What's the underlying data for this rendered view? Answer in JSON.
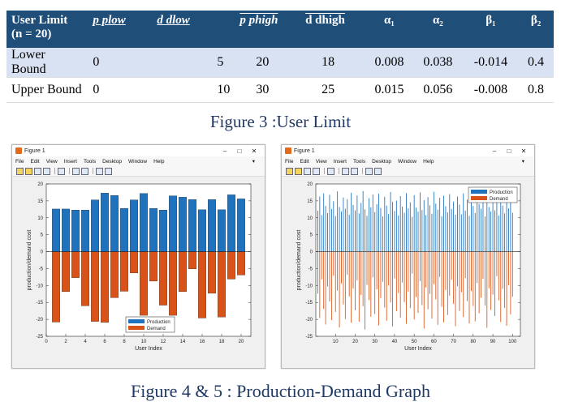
{
  "table": {
    "headers": {
      "user_limit": "User Limit",
      "n": "(n = 20)",
      "p_plow": "p plow",
      "d_dlow": "d dlow",
      "p_phigh": "p phigh",
      "d_dhigh": "d dhigh",
      "alpha1": "α₁",
      "alpha2": "α₂",
      "beta1": "β₁",
      "beta2": "β₂"
    },
    "rows": [
      {
        "label": "Lower Bound",
        "v": [
          "0",
          "5",
          "20",
          "18",
          "0.008",
          "0.038",
          "-0.014",
          "0.4"
        ]
      },
      {
        "label": "Upper Bound",
        "v": [
          "0",
          "10",
          "30",
          "25",
          "0.015",
          "0.056",
          "-0.008",
          "0.8"
        ]
      }
    ]
  },
  "caption_top": "Figure 3 :User Limit",
  "caption_bottom": "Figure 4 & 5 : Production-Demand Graph",
  "window": {
    "title": "Figure 1",
    "menu": [
      "File",
      "Edit",
      "View",
      "Insert",
      "Tools",
      "Desktop",
      "Window",
      "Help"
    ],
    "min": "–",
    "max": "□",
    "close": "✕",
    "arrow": "▾"
  },
  "colors": {
    "production": "#1f72bd",
    "demand": "#d95319",
    "header_bg": "#1f4e79",
    "row_bg": "#d9e2f3",
    "caption": "#1f3864"
  },
  "chart_data": [
    {
      "type": "bar",
      "xlabel": "User Index",
      "ylabel": "production/demand cost",
      "xlim": [
        0,
        21
      ],
      "ylim": [
        -25,
        20
      ],
      "xticks": [
        0,
        2,
        4,
        6,
        8,
        10,
        12,
        14,
        16,
        18,
        20
      ],
      "yticks": [
        20,
        15,
        10,
        5,
        0,
        -5,
        -10,
        -15,
        -20,
        -25
      ],
      "legend_position": "bottom-center",
      "categories": [
        1,
        2,
        3,
        4,
        5,
        6,
        7,
        8,
        9,
        10,
        11,
        12,
        13,
        14,
        15,
        16,
        17,
        18,
        19,
        20
      ],
      "series": [
        {
          "name": "Production",
          "values": [
            12.6,
            12.6,
            12.3,
            12.3,
            15.3,
            17.3,
            16.6,
            12.8,
            15.3,
            17.2,
            12.8,
            12.3,
            16.5,
            16.1,
            15.4,
            12.4,
            15.4,
            12.4,
            16.8,
            15.6
          ]
        },
        {
          "name": "Demand",
          "values": [
            -20.8,
            -11.8,
            -7.7,
            -16,
            -20.6,
            -20.9,
            -13.6,
            -11.7,
            -6.3,
            -18.8,
            -8.7,
            -15.8,
            -18.8,
            -11.8,
            -5.1,
            -19.6,
            -12.3,
            -19.3,
            -8.1,
            -6.9
          ]
        }
      ]
    },
    {
      "type": "bar",
      "xlabel": "User Index",
      "ylabel": "production/demand cost",
      "xlim": [
        0,
        104
      ],
      "ylim": [
        -25,
        20
      ],
      "xticks": [
        10,
        20,
        30,
        40,
        50,
        60,
        70,
        80,
        90,
        100
      ],
      "yticks": [
        20,
        15,
        10,
        5,
        0,
        -5,
        -10,
        -15,
        -20,
        -25
      ],
      "legend_position": "top-right",
      "categories": [
        1,
        2,
        3,
        4,
        5,
        6,
        7,
        8,
        9,
        10,
        11,
        12,
        13,
        14,
        15,
        16,
        17,
        18,
        19,
        20,
        21,
        22,
        23,
        24,
        25,
        26,
        27,
        28,
        29,
        30,
        31,
        32,
        33,
        34,
        35,
        36,
        37,
        38,
        39,
        40,
        41,
        42,
        43,
        44,
        45,
        46,
        47,
        48,
        49,
        50,
        51,
        52,
        53,
        54,
        55,
        56,
        57,
        58,
        59,
        60,
        61,
        62,
        63,
        64,
        65,
        66,
        67,
        68,
        69,
        70,
        71,
        72,
        73,
        74,
        75,
        76,
        77,
        78,
        79,
        80,
        81,
        82,
        83,
        84,
        85,
        86,
        87,
        88,
        89,
        90,
        91,
        92,
        93,
        94,
        95,
        96,
        97,
        98,
        99,
        100
      ],
      "series": [
        {
          "name": "Production",
          "values": [
            12.1,
            16.3,
            10.8,
            17.2,
            13.5,
            11.4,
            16.8,
            12.6,
            14.9,
            10.5,
            17.8,
            13.2,
            11.9,
            16.0,
            12.7,
            15.5,
            10.9,
            17.4,
            13.8,
            12.2,
            16.6,
            11.3,
            14.4,
            17.9,
            12.5,
            10.6,
            15.8,
            13.1,
            16.9,
            11.7,
            14.0,
            17.1,
            12.9,
            10.4,
            16.2,
            13.6,
            11.1,
            17.6,
            14.7,
            12.0,
            15.1,
            10.7,
            16.4,
            13.3,
            11.5,
            17.3,
            12.8,
            14.6,
            10.3,
            16.7,
            13.0,
            11.8,
            17.5,
            12.3,
            15.2,
            10.8,
            16.1,
            13.7,
            11.2,
            17.7,
            14.2,
            12.4,
            15.9,
            10.5,
            16.5,
            13.4,
            11.6,
            17.0,
            12.6,
            14.8,
            10.9,
            16.3,
            13.9,
            11.0,
            17.2,
            12.1,
            15.4,
            10.6,
            16.8,
            13.5,
            11.4,
            17.8,
            14.1,
            12.7,
            15.6,
            10.4,
            16.0,
            13.2,
            11.9,
            17.4,
            12.2,
            14.5,
            10.7,
            16.6,
            13.6,
            11.3,
            17.1,
            12.8,
            15.0,
            11.5
          ]
        },
        {
          "name": "Demand",
          "values": [
            -12.4,
            -19.6,
            -8.2,
            -16.9,
            -21.5,
            -10.3,
            -14.7,
            -20.2,
            -7.1,
            -17.8,
            -11.5,
            -22.4,
            -9.4,
            -15.6,
            -19.9,
            -6.8,
            -13.2,
            -21.0,
            -10.9,
            -17.3,
            -8.5,
            -20.7,
            -12.8,
            -16.1,
            -23.0,
            -9.8,
            -14.3,
            -19.2,
            -7.6,
            -18.4,
            -11.1,
            -21.8,
            -13.7,
            -8.9,
            -16.5,
            -20.4,
            -10.0,
            -15.0,
            -22.1,
            -7.9,
            -17.6,
            -12.2,
            -19.5,
            -9.1,
            -14.9,
            -21.3,
            -11.8,
            -16.7,
            -6.5,
            -20.0,
            -13.4,
            -18.1,
            -8.7,
            -15.8,
            -22.7,
            -10.6,
            -17.0,
            -12.5,
            -19.8,
            -9.6,
            -14.1,
            -21.6,
            -7.4,
            -16.3,
            -20.9,
            -11.3,
            -18.7,
            -13.0,
            -8.3,
            -15.4,
            -22.0,
            -10.2,
            -17.5,
            -12.0,
            -19.3,
            -7.8,
            -14.6,
            -21.2,
            -11.6,
            -16.0,
            -20.6,
            -9.3,
            -18.2,
            -13.6,
            -8.0,
            -15.9,
            -22.5,
            -10.8,
            -17.2,
            -12.7,
            -19.0,
            -7.2,
            -14.4,
            -20.8,
            -11.0,
            -16.6,
            -21.9,
            -9.9,
            -18.5,
            -13.3
          ]
        }
      ]
    }
  ]
}
